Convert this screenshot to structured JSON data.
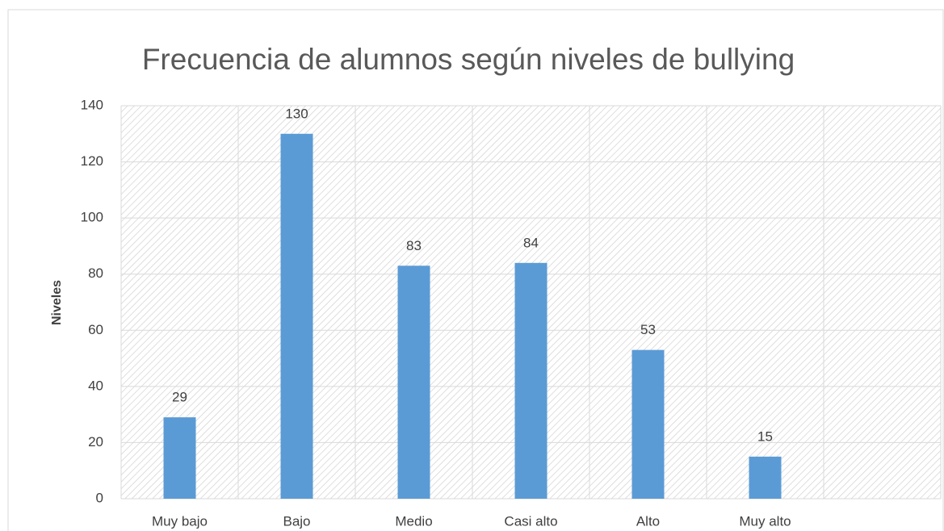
{
  "chart_data": {
    "type": "bar",
    "title": "Frecuencia de alumnos según niveles de bullying",
    "y_label": "Niveles",
    "categories": [
      "Muy bajo",
      "Bajo",
      "Medio",
      "Casi alto",
      "Alto",
      "Muy alto",
      null
    ],
    "values": [
      29,
      130,
      83,
      84,
      53,
      15,
      null
    ],
    "color": "#5b9bd5",
    "ylim": [
      0,
      140
    ],
    "yticks": [
      0,
      20,
      40,
      60,
      80,
      100,
      120,
      140
    ],
    "grid": true,
    "data_labels": true
  }
}
